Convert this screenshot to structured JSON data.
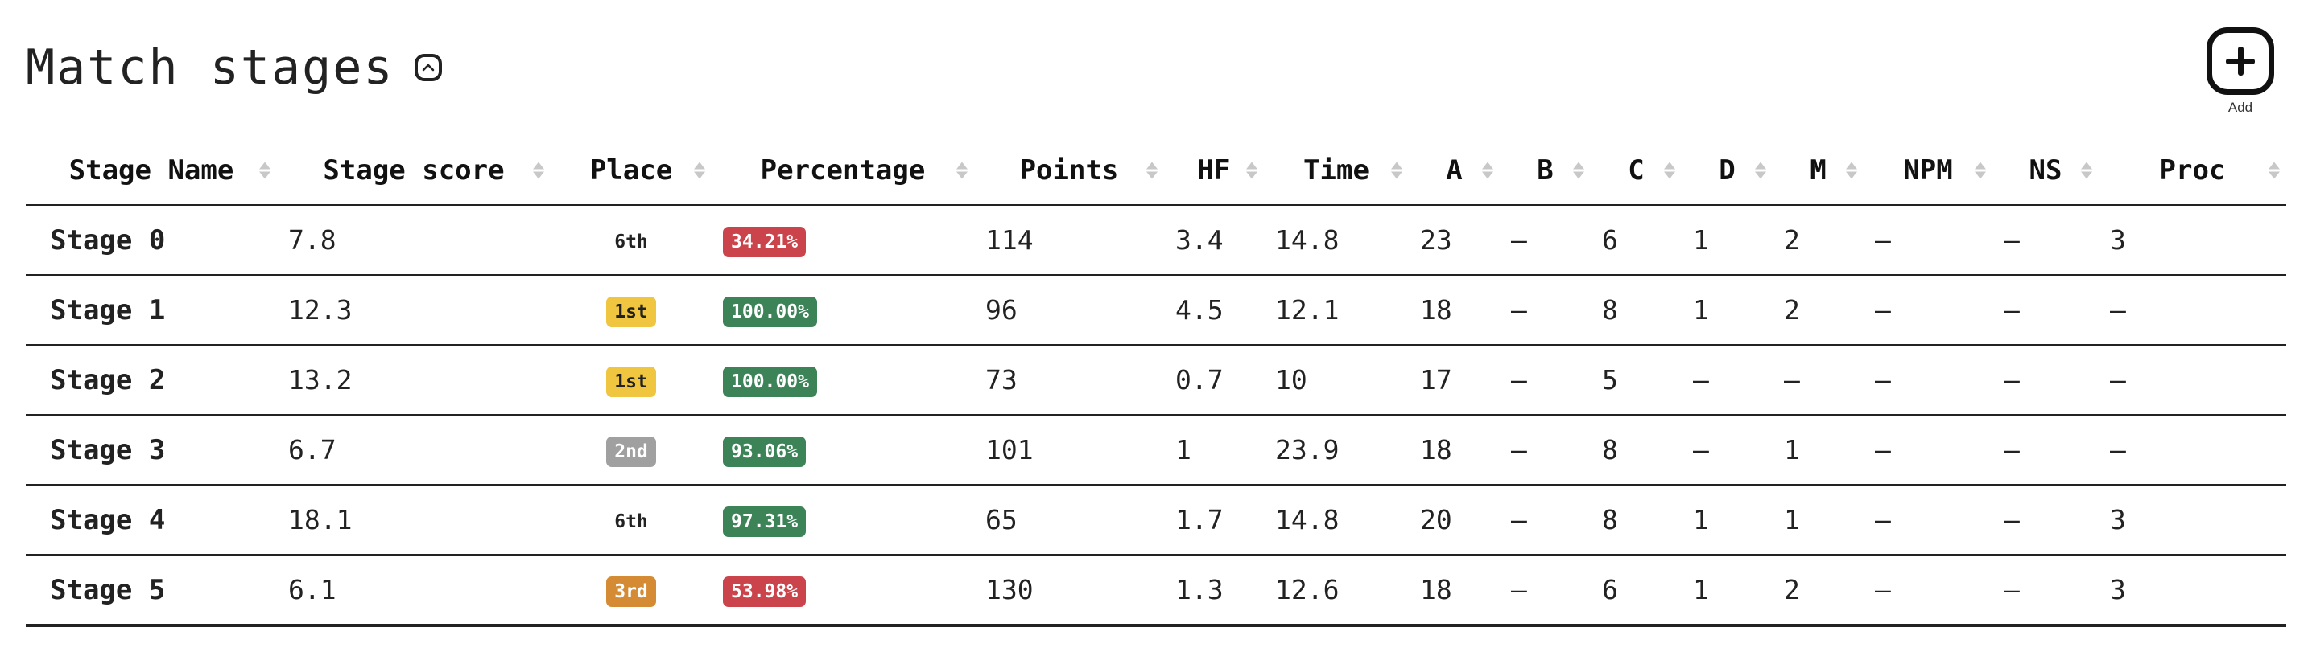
{
  "header": {
    "title": "Match stages",
    "add_label": "Add"
  },
  "table": {
    "columns": [
      "Stage Name",
      "Stage score",
      "Place",
      "Percentage",
      "Points",
      "HF",
      "Time",
      "A",
      "B",
      "C",
      "D",
      "M",
      "NPM",
      "NS",
      "Proc"
    ],
    "rows": [
      {
        "name": "Stage 0",
        "score": "7.8",
        "place": "6th",
        "place_style": "plain",
        "percentage": "34.21%",
        "pct_style": "red",
        "points": "114",
        "hf": "3.4",
        "time": "14.8",
        "a": "23",
        "b": "–",
        "c": "6",
        "d": "1",
        "m": "2",
        "npm": "–",
        "ns": "–",
        "proc": "3"
      },
      {
        "name": "Stage 1",
        "score": "12.3",
        "place": "1st",
        "place_style": "gold",
        "percentage": "100.00%",
        "pct_style": "green",
        "points": "96",
        "hf": "4.5",
        "time": "12.1",
        "a": "18",
        "b": "–",
        "c": "8",
        "d": "1",
        "m": "2",
        "npm": "–",
        "ns": "–",
        "proc": "–"
      },
      {
        "name": "Stage 2",
        "score": "13.2",
        "place": "1st",
        "place_style": "gold",
        "percentage": "100.00%",
        "pct_style": "green",
        "points": "73",
        "hf": "0.7",
        "time": "10",
        "a": "17",
        "b": "–",
        "c": "5",
        "d": "–",
        "m": "–",
        "npm": "–",
        "ns": "–",
        "proc": "–"
      },
      {
        "name": "Stage 3",
        "score": "6.7",
        "place": "2nd",
        "place_style": "gray",
        "percentage": "93.06%",
        "pct_style": "green",
        "points": "101",
        "hf": "1",
        "time": "23.9",
        "a": "18",
        "b": "–",
        "c": "8",
        "d": "–",
        "m": "1",
        "npm": "–",
        "ns": "–",
        "proc": "–"
      },
      {
        "name": "Stage 4",
        "score": "18.1",
        "place": "6th",
        "place_style": "plain",
        "percentage": "97.31%",
        "pct_style": "green",
        "points": "65",
        "hf": "1.7",
        "time": "14.8",
        "a": "20",
        "b": "–",
        "c": "8",
        "d": "1",
        "m": "1",
        "npm": "–",
        "ns": "–",
        "proc": "3"
      },
      {
        "name": "Stage 5",
        "score": "6.1",
        "place": "3rd",
        "place_style": "orange",
        "percentage": "53.98%",
        "pct_style": "red",
        "points": "130",
        "hf": "1.3",
        "time": "12.6",
        "a": "18",
        "b": "–",
        "c": "6",
        "d": "1",
        "m": "2",
        "npm": "–",
        "ns": "–",
        "proc": "3"
      }
    ]
  },
  "colors": {
    "red": "#cc444b",
    "green": "#3d8358",
    "gold": "#f0c53f",
    "gray": "#a0a0a0",
    "orange": "#d48b33"
  },
  "icons": {
    "toggle": "chevron-up-icon",
    "add": "plus-square-icon"
  }
}
